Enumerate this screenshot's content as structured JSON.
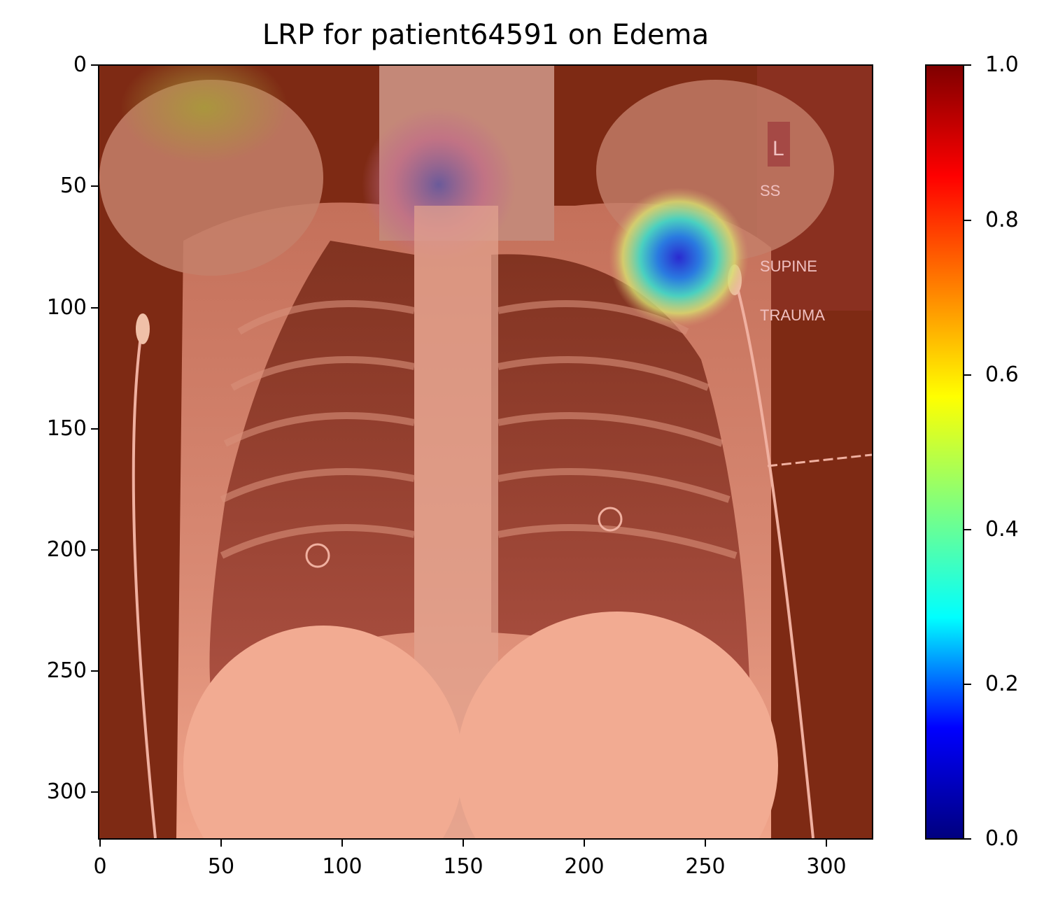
{
  "title": "LRP for patient64591 on Edema",
  "image": {
    "description_tag": "chest-xray-relevance-heatmap",
    "overlay_labels": [
      "L",
      "SS",
      "SUPINE",
      "TRAUMA"
    ]
  },
  "axes": {
    "y_ticks": [
      "0",
      "50",
      "100",
      "150",
      "200",
      "250",
      "300"
    ],
    "x_ticks": [
      "0",
      "50",
      "100",
      "150",
      "200",
      "250",
      "300"
    ]
  },
  "colorbar": {
    "ticks": [
      "0.0",
      "0.2",
      "0.4",
      "0.6",
      "0.8",
      "1.0"
    ],
    "colormap": "jet",
    "colors": [
      "#00007f",
      "#0000ff",
      "#00ffff",
      "#7fff7f",
      "#ffff00",
      "#ff7f00",
      "#ff0000",
      "#7f0000"
    ]
  }
}
